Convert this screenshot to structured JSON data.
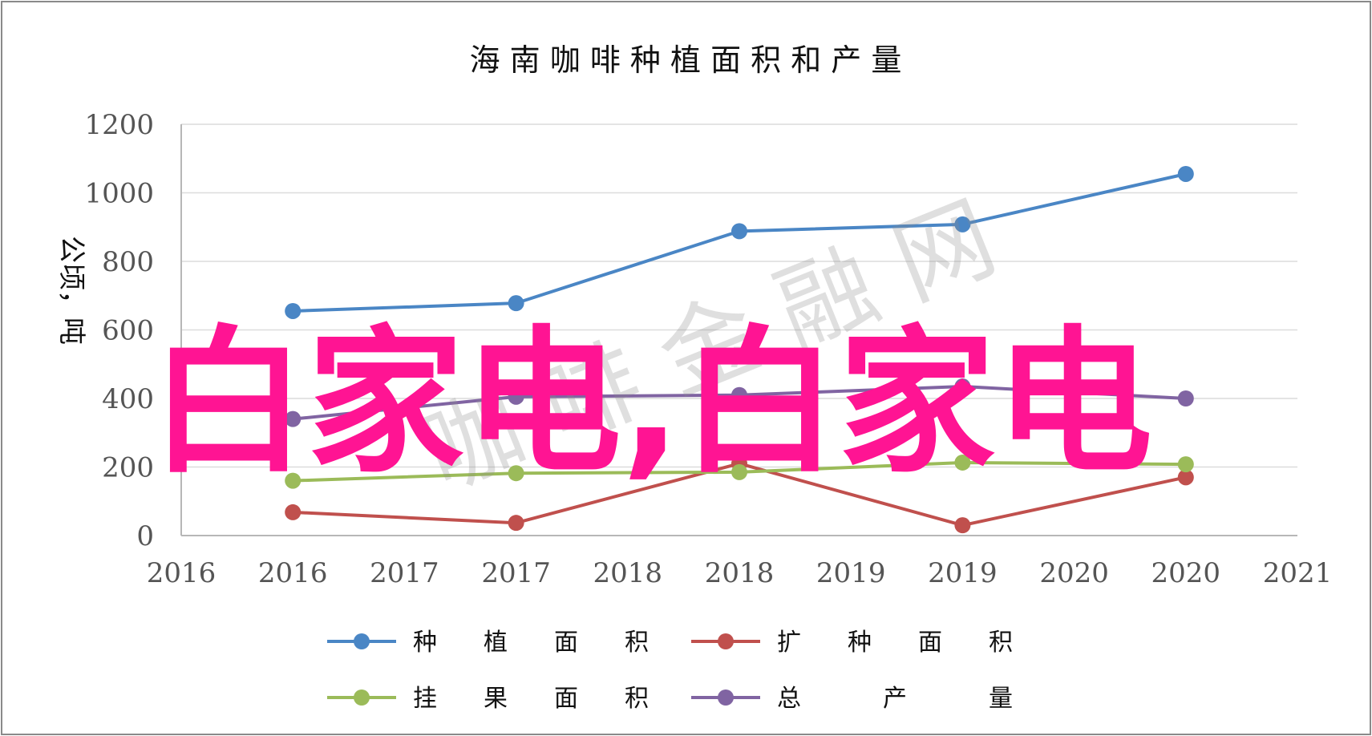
{
  "chart_data": {
    "type": "line",
    "title": "海 南 咖 啡 种 植 面 积 和 产 量",
    "ylabel": "公顷，吨",
    "ylim": [
      0,
      1200
    ],
    "yticks": [
      "0",
      "200",
      "400",
      "600",
      "800",
      "1000",
      "1200"
    ],
    "xticks": [
      "2016",
      "2016",
      "2017",
      "2017",
      "2018",
      "2018",
      "2019",
      "2019",
      "2020",
      "2020",
      "2021"
    ],
    "x_positions": [
      1,
      3,
      5,
      7,
      9
    ],
    "grid": "horizontal",
    "legend_position": "bottom",
    "series": [
      {
        "name": "种 植 面 积",
        "color": "#4a86c5",
        "values": [
          655,
          678,
          888,
          908,
          1055
        ]
      },
      {
        "name": "扩 种 面 积",
        "color": "#c0504d",
        "values": [
          68,
          37,
          210,
          30,
          170
        ]
      },
      {
        "name": "挂 果 面 积",
        "color": "#9bbb59",
        "values": [
          160,
          182,
          185,
          213,
          208
        ]
      },
      {
        "name": "总 产 量",
        "color": "#8064a2",
        "values": [
          340,
          405,
          410,
          435,
          400
        ]
      }
    ]
  },
  "watermarks": {
    "main": "白家电,白家电",
    "secondary": "咖 啡 金 融 网"
  }
}
